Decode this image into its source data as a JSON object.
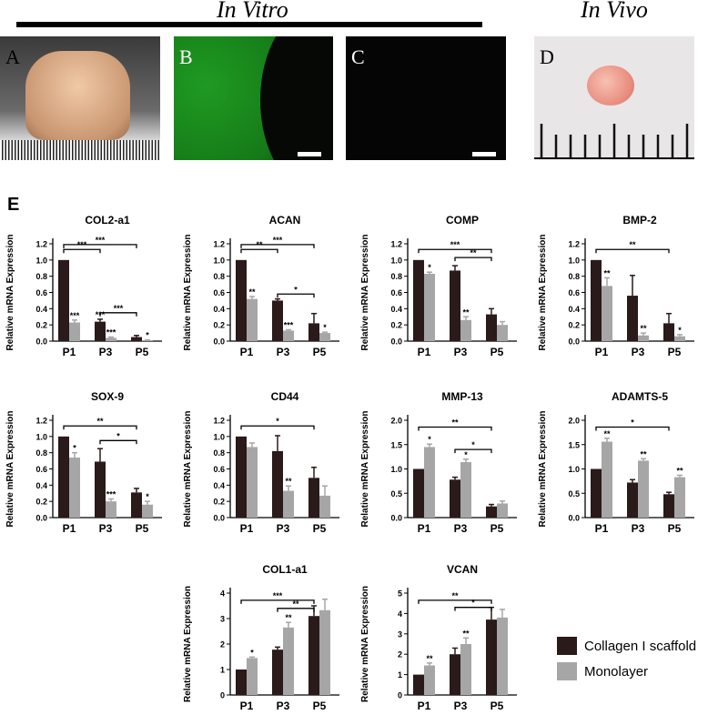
{
  "headers": {
    "in_vitro": "In Vitro",
    "in_vivo": "In Vivo"
  },
  "panels": {
    "a": "A",
    "b": "B",
    "c": "C",
    "d": "D",
    "e": "E"
  },
  "colors": {
    "collagen": "#2a1a1a",
    "monolayer": "#a6a6a6",
    "green": "#1a8a1a"
  },
  "legend": {
    "collagen": "Collagen I scaffold",
    "monolayer": "Monolayer"
  },
  "chart_data": [
    {
      "type": "bar",
      "title": "COL2-a1",
      "categories": [
        "P1",
        "P3",
        "P5"
      ],
      "ylabel": "Relative mRNA Expression",
      "ylim": [
        0,
        1.2
      ],
      "yticks": [
        0.0,
        0.2,
        0.4,
        0.6,
        0.8,
        1.0,
        1.2
      ],
      "series": [
        {
          "name": "Collagen I scaffold",
          "values": [
            1.0,
            0.24,
            0.05
          ],
          "errors": [
            0,
            0.03,
            0.02
          ]
        },
        {
          "name": "Monolayer",
          "values": [
            0.23,
            0.04,
            0.01
          ],
          "errors": [
            0.03,
            0.01,
            0.005
          ]
        }
      ],
      "sig": [
        [
          "",
          "***"
        ],
        [
          "***",
          "***"
        ],
        [
          "",
          "*"
        ]
      ],
      "brackets": [
        {
          "from": 0,
          "to": 1,
          "level": 1.13,
          "label": "***"
        },
        {
          "from": 0,
          "to": 2,
          "level": 1.19,
          "label": "***"
        },
        {
          "from": 1,
          "to": 2,
          "level": 0.35,
          "label": "***"
        }
      ]
    },
    {
      "type": "bar",
      "title": "ACAN",
      "categories": [
        "P1",
        "P3",
        "P5"
      ],
      "ylabel": "Relative mRNA Expression",
      "ylim": [
        0,
        1.2
      ],
      "yticks": [
        0.0,
        0.2,
        0.4,
        0.6,
        0.8,
        1.0,
        1.2
      ],
      "series": [
        {
          "name": "Collagen I scaffold",
          "values": [
            1.0,
            0.5,
            0.22
          ],
          "errors": [
            0,
            0.02,
            0.12
          ]
        },
        {
          "name": "Monolayer",
          "values": [
            0.52,
            0.13,
            0.1
          ],
          "errors": [
            0.03,
            0.01,
            0.01
          ]
        }
      ],
      "sig": [
        [
          "",
          "**"
        ],
        [
          "",
          "***"
        ],
        [
          "",
          "*"
        ]
      ],
      "brackets": [
        {
          "from": 0,
          "to": 1,
          "level": 1.13,
          "label": "**"
        },
        {
          "from": 0,
          "to": 2,
          "level": 1.19,
          "label": "***"
        },
        {
          "from": 1,
          "to": 2,
          "level": 0.58,
          "label": "*"
        }
      ]
    },
    {
      "type": "bar",
      "title": "COMP",
      "categories": [
        "P1",
        "P3",
        "P5"
      ],
      "ylabel": "Relative mRNA Expression",
      "ylim": [
        0,
        1.2
      ],
      "yticks": [
        0.0,
        0.2,
        0.4,
        0.6,
        0.8,
        1.0,
        1.2
      ],
      "series": [
        {
          "name": "Collagen I scaffold",
          "values": [
            1.0,
            0.87,
            0.33
          ],
          "errors": [
            0,
            0.06,
            0.07
          ]
        },
        {
          "name": "Monolayer",
          "values": [
            0.83,
            0.26,
            0.2
          ],
          "errors": [
            0.02,
            0.04,
            0.04
          ]
        }
      ],
      "sig": [
        [
          "",
          "*"
        ],
        [
          "",
          "**"
        ],
        [
          "",
          ""
        ]
      ],
      "brackets": [
        {
          "from": 0,
          "to": 2,
          "level": 1.13,
          "label": "***"
        },
        {
          "from": 1,
          "to": 2,
          "level": 1.03,
          "label": "**"
        }
      ]
    },
    {
      "type": "bar",
      "title": "BMP-2",
      "categories": [
        "P1",
        "P3",
        "P5"
      ],
      "ylabel": "Relative mRNA Expression",
      "ylim": [
        0,
        1.2
      ],
      "yticks": [
        0.0,
        0.2,
        0.4,
        0.6,
        0.8,
        1.0,
        1.2
      ],
      "series": [
        {
          "name": "Collagen I scaffold",
          "values": [
            1.0,
            0.56,
            0.22
          ],
          "errors": [
            0,
            0.25,
            0.12
          ]
        },
        {
          "name": "Monolayer",
          "values": [
            0.68,
            0.07,
            0.06
          ],
          "errors": [
            0.1,
            0.03,
            0.02
          ]
        }
      ],
      "sig": [
        [
          "",
          "**"
        ],
        [
          "",
          "**"
        ],
        [
          "",
          "*"
        ]
      ],
      "brackets": [
        {
          "from": 0,
          "to": 2,
          "level": 1.13,
          "label": "**"
        }
      ]
    },
    {
      "type": "bar",
      "title": "SOX-9",
      "categories": [
        "P1",
        "P3",
        "P5"
      ],
      "ylabel": "Relative mRNA Expression",
      "ylim": [
        0,
        1.2
      ],
      "yticks": [
        0.0,
        0.2,
        0.4,
        0.6,
        0.8,
        1.0,
        1.2
      ],
      "series": [
        {
          "name": "Collagen I scaffold",
          "values": [
            1.0,
            0.69,
            0.31
          ],
          "errors": [
            0,
            0.16,
            0.05
          ]
        },
        {
          "name": "Monolayer",
          "values": [
            0.74,
            0.2,
            0.16
          ],
          "errors": [
            0.06,
            0.03,
            0.04
          ]
        }
      ],
      "sig": [
        [
          "",
          "*"
        ],
        [
          "",
          "***"
        ],
        [
          "",
          "*"
        ]
      ],
      "brackets": [
        {
          "from": 0,
          "to": 2,
          "level": 1.13,
          "label": "**"
        },
        {
          "from": 1,
          "to": 2,
          "level": 0.95,
          "label": "*"
        }
      ]
    },
    {
      "type": "bar",
      "title": "CD44",
      "categories": [
        "P1",
        "P3",
        "P5"
      ],
      "ylabel": "Relative mRNA Expression",
      "ylim": [
        0,
        1.2
      ],
      "yticks": [
        0.0,
        0.2,
        0.4,
        0.6,
        0.8,
        1.0,
        1.2
      ],
      "series": [
        {
          "name": "Collagen I scaffold",
          "values": [
            1.0,
            0.82,
            0.49
          ],
          "errors": [
            0,
            0.19,
            0.13
          ]
        },
        {
          "name": "Monolayer",
          "values": [
            0.87,
            0.33,
            0.27
          ],
          "errors": [
            0.05,
            0.06,
            0.12
          ]
        }
      ],
      "sig": [
        [
          "",
          ""
        ],
        [
          "",
          "**"
        ],
        [
          "",
          ""
        ]
      ],
      "brackets": [
        {
          "from": 0,
          "to": 2,
          "level": 1.13,
          "label": "*"
        }
      ]
    },
    {
      "type": "bar",
      "title": "MMP-13",
      "categories": [
        "P1",
        "P3",
        "P5"
      ],
      "ylabel": "Relative mRNA Expression",
      "ylim": [
        0,
        2.0
      ],
      "yticks": [
        0.0,
        0.5,
        1.0,
        1.5,
        2.0
      ],
      "series": [
        {
          "name": "Collagen I scaffold",
          "values": [
            1.0,
            0.78,
            0.23
          ],
          "errors": [
            0,
            0.05,
            0.04
          ]
        },
        {
          "name": "Monolayer",
          "values": [
            1.45,
            1.14,
            0.29
          ],
          "errors": [
            0.06,
            0.06,
            0.05
          ]
        }
      ],
      "sig": [
        [
          "",
          "*"
        ],
        [
          "",
          "*"
        ],
        [
          "",
          ""
        ]
      ],
      "brackets": [
        {
          "from": 0,
          "to": 2,
          "level": 1.86,
          "label": "**"
        },
        {
          "from": 1,
          "to": 2,
          "level": 1.4,
          "label": "*"
        }
      ]
    },
    {
      "type": "bar",
      "title": "ADAMTS-5",
      "categories": [
        "P1",
        "P3",
        "P5"
      ],
      "ylabel": "Relative mRNA Expression",
      "ylim": [
        0,
        2.0
      ],
      "yticks": [
        0.0,
        0.5,
        1.0,
        1.5,
        2.0
      ],
      "series": [
        {
          "name": "Collagen I scaffold",
          "values": [
            1.0,
            0.72,
            0.48
          ],
          "errors": [
            0,
            0.06,
            0.04
          ]
        },
        {
          "name": "Monolayer",
          "values": [
            1.56,
            1.17,
            0.83
          ],
          "errors": [
            0.07,
            0.04,
            0.04
          ]
        }
      ],
      "sig": [
        [
          "",
          "**"
        ],
        [
          "",
          "**"
        ],
        [
          "",
          "**"
        ]
      ],
      "brackets": [
        {
          "from": 0,
          "to": 2,
          "level": 1.86,
          "label": "*"
        }
      ]
    },
    {
      "type": "bar",
      "title": "COL1-a1",
      "categories": [
        "P1",
        "P3",
        "P5"
      ],
      "ylabel": "Relative mRNA Expression",
      "ylim": [
        0,
        4
      ],
      "yticks": [
        0,
        1,
        2,
        3,
        4
      ],
      "series": [
        {
          "name": "Collagen I scaffold",
          "values": [
            1.0,
            1.78,
            3.1
          ],
          "errors": [
            0,
            0.1,
            0.4
          ]
        },
        {
          "name": "Monolayer",
          "values": [
            1.45,
            2.65,
            3.33
          ],
          "errors": [
            0.04,
            0.2,
            0.43
          ]
        }
      ],
      "sig": [
        [
          "",
          "*"
        ],
        [
          "",
          "**"
        ],
        [
          "",
          ""
        ]
      ],
      "brackets": [
        {
          "from": 0,
          "to": 2,
          "level": 3.72,
          "label": "***"
        },
        {
          "from": 1,
          "to": 2,
          "level": 3.4,
          "label": "**"
        }
      ]
    },
    {
      "type": "bar",
      "title": "VCAN",
      "categories": [
        "P1",
        "P3",
        "P5"
      ],
      "ylabel": "Relative mRNA Expression",
      "ylim": [
        0,
        5
      ],
      "yticks": [
        0,
        1,
        2,
        3,
        4,
        5
      ],
      "series": [
        {
          "name": "Collagen I scaffold",
          "values": [
            1.0,
            2.0,
            3.7
          ],
          "errors": [
            0,
            0.3,
            0.6
          ]
        },
        {
          "name": "Monolayer",
          "values": [
            1.45,
            2.5,
            3.8
          ],
          "errors": [
            0.12,
            0.3,
            0.4
          ]
        }
      ],
      "sig": [
        [
          "",
          "**"
        ],
        [
          "",
          "**"
        ],
        [
          "",
          ""
        ]
      ],
      "brackets": [
        {
          "from": 0,
          "to": 2,
          "level": 4.65,
          "label": "**"
        },
        {
          "from": 1,
          "to": 2,
          "level": 4.3,
          "label": "*"
        }
      ]
    }
  ]
}
